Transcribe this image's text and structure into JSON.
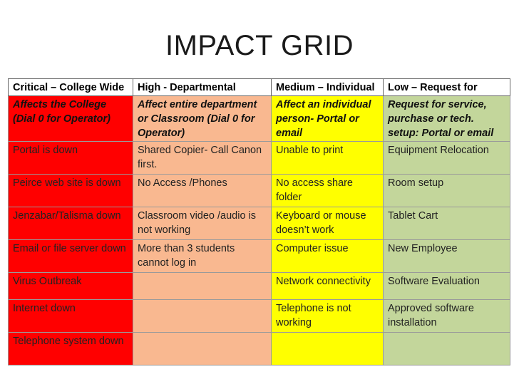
{
  "title": "IMPACT GRID",
  "headers": [
    "Critical – College Wide",
    "High - Departmental",
    "Medium – Individual",
    "Low – Request for"
  ],
  "descriptions": [
    "Affects the College (Dial 0 for Operator)",
    "Affect entire department or Classroom (Dial 0 for Operator)",
    "Affect an individual person- Portal or email",
    "Request for service, purchase or tech. setup: Portal or email"
  ],
  "rows": [
    [
      "Portal is down",
      "Shared Copier- Call Canon first.",
      "Unable to print",
      "Equipment Relocation"
    ],
    [
      "Peirce web site is down",
      "No Access /Phones",
      "No access share folder",
      "Room setup"
    ],
    [
      "Jenzabar/Talisma down",
      "Classroom video /audio is not working",
      "Keyboard or mouse doesn’t work",
      "Tablet Cart"
    ],
    [
      "Email or file server down",
      "More than 3 students cannot log in",
      "Computer issue",
      "New Employee"
    ],
    [
      "Virus Outbreak",
      "",
      "Network connectivity",
      "Software Evaluation"
    ],
    [
      "Internet down",
      "",
      "Telephone is not working",
      "Approved software installation"
    ],
    [
      "Telephone system down",
      "",
      "",
      ""
    ]
  ],
  "colors": {
    "critical": "#ff0000",
    "high": "#f9b890",
    "medium": "#ffff00",
    "low": "#c3d69b"
  }
}
